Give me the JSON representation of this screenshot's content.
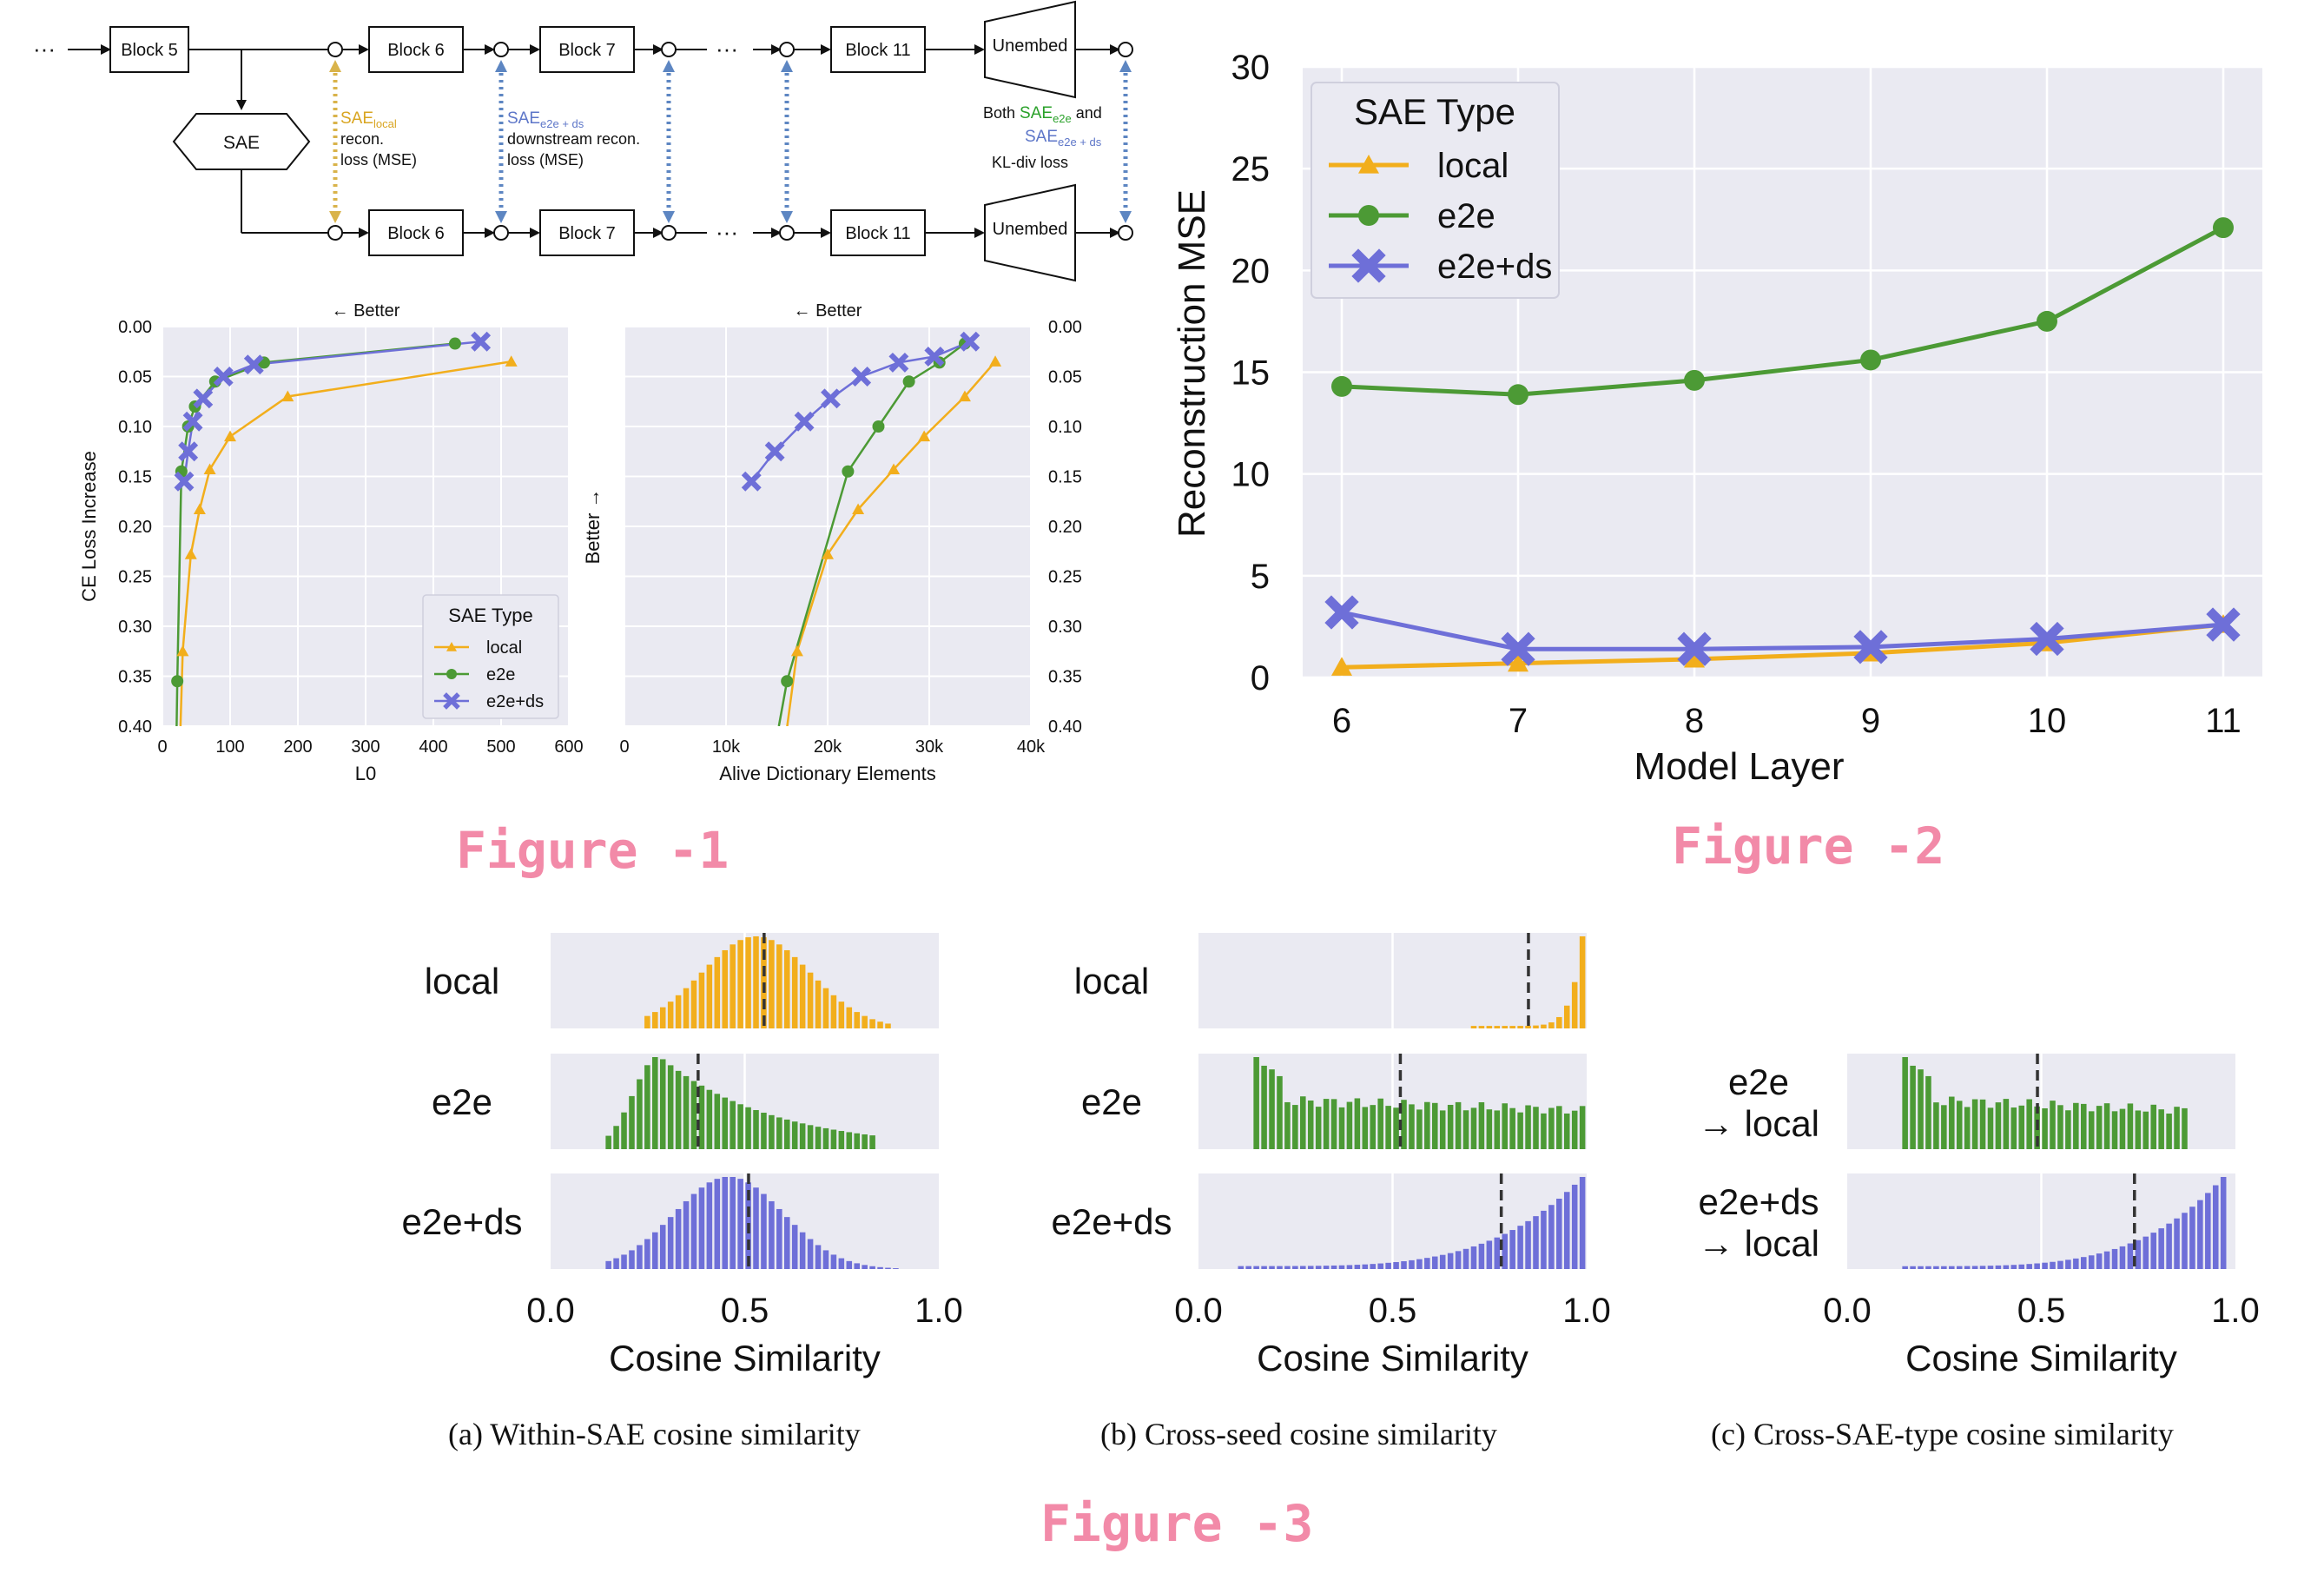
{
  "figure_labels": {
    "fig1": "Figure -1",
    "fig2": "Figure -2",
    "fig3": "Figure -3"
  },
  "colors": {
    "local": "#f2ae1c",
    "e2e": "#4c9a35",
    "e2e_ds": "#6e6fd8",
    "plot_bg": "#eaeaf2",
    "figure_label": "#f28aa8"
  },
  "diagram": {
    "ellipsis": "···",
    "top_row": [
      "Block 5",
      "Block 6",
      "Block 7",
      "Block 11",
      "Unembed"
    ],
    "bottom_row": [
      "Block 6",
      "Block 7",
      "Block 11",
      "Unembed"
    ],
    "sae_label": "SAE",
    "note_local": {
      "prefix": "SAE",
      "sub": "local",
      "lines": [
        "recon.",
        "loss (MSE)"
      ]
    },
    "note_e2eds": {
      "prefix": "SAE",
      "sub": "e2e + ds",
      "lines": [
        "downstream recon.",
        "loss (MSE)"
      ]
    },
    "note_kl": {
      "both": "Both",
      "sae1": "SAE",
      "sub1": "e2e",
      "and": "and",
      "sae2": "SAE",
      "sub2": "e2e + ds",
      "line3": "KL-div loss"
    }
  },
  "chart_data": [
    {
      "id": "fig1_left",
      "type": "line",
      "title": "← Better",
      "xlabel": "L0",
      "ylabel": "CE Loss Increase",
      "xlim": [
        0,
        600
      ],
      "ylim": [
        0.0,
        0.4
      ],
      "y_inverted": true,
      "xticks": [
        "0",
        "100",
        "200",
        "300",
        "400",
        "500",
        "600"
      ],
      "yticks": [
        "0.00",
        "0.05",
        "0.10",
        "0.15",
        "0.20",
        "0.25",
        "0.30",
        "0.35",
        "0.40"
      ],
      "legend": {
        "title": "SAE Type",
        "position": "lower-right"
      },
      "series": [
        {
          "name": "local",
          "points": [
            [
              30,
              0.325
            ],
            [
              42,
              0.228
            ],
            [
              55,
              0.183
            ],
            [
              70,
              0.143
            ],
            [
              100,
              0.11
            ],
            [
              185,
              0.07
            ],
            [
              515,
              0.035
            ]
          ]
        },
        {
          "name": "e2e",
          "points": [
            [
              22,
              0.355
            ],
            [
              28,
              0.145
            ],
            [
              38,
              0.1
            ],
            [
              48,
              0.08
            ],
            [
              78,
              0.055
            ],
            [
              150,
              0.036
            ],
            [
              432,
              0.017
            ]
          ]
        },
        {
          "name": "e2e+ds",
          "points": [
            [
              32,
              0.155
            ],
            [
              38,
              0.125
            ],
            [
              45,
              0.095
            ],
            [
              60,
              0.072
            ],
            [
              90,
              0.05
            ],
            [
              135,
              0.038
            ],
            [
              470,
              0.015
            ]
          ]
        }
      ]
    },
    {
      "id": "fig1_right",
      "type": "line",
      "title": "← Better",
      "xlabel": "Alive Dictionary Elements",
      "ylabel": "Better →",
      "xlim": [
        0,
        40000
      ],
      "ylim": [
        0.0,
        0.4
      ],
      "y_inverted": true,
      "xticks": [
        "0",
        "10k",
        "20k",
        "30k",
        "40k"
      ],
      "yticks": [
        "0.00",
        "0.05",
        "0.10",
        "0.15",
        "0.20",
        "0.25",
        "0.30",
        "0.35",
        "0.40"
      ],
      "series": [
        {
          "name": "local",
          "points": [
            [
              17000,
              0.325
            ],
            [
              20000,
              0.228
            ],
            [
              23000,
              0.183
            ],
            [
              26500,
              0.143
            ],
            [
              29500,
              0.11
            ],
            [
              33500,
              0.07
            ],
            [
              36500,
              0.035
            ]
          ]
        },
        {
          "name": "e2e",
          "points": [
            [
              16000,
              0.355
            ],
            [
              22000,
              0.145
            ],
            [
              25000,
              0.1
            ],
            [
              28000,
              0.055
            ],
            [
              31000,
              0.036
            ],
            [
              33500,
              0.017
            ]
          ]
        },
        {
          "name": "e2e+ds",
          "points": [
            [
              12500,
              0.155
            ],
            [
              14800,
              0.125
            ],
            [
              17700,
              0.095
            ],
            [
              20300,
              0.072
            ],
            [
              23300,
              0.05
            ],
            [
              27000,
              0.036
            ],
            [
              30500,
              0.03
            ],
            [
              34000,
              0.015
            ]
          ]
        }
      ]
    },
    {
      "id": "fig2",
      "type": "line",
      "xlabel": "Model Layer",
      "ylabel": "Reconstruction MSE",
      "ylim": [
        0,
        30
      ],
      "categories": [
        "6",
        "7",
        "8",
        "9",
        "10",
        "11"
      ],
      "yticks": [
        "0",
        "5",
        "10",
        "15",
        "20",
        "25",
        "30"
      ],
      "legend": {
        "title": "SAE Type",
        "position": "top-left"
      },
      "series": [
        {
          "name": "local",
          "values": [
            0.5,
            0.7,
            0.9,
            1.2,
            1.7,
            2.6
          ]
        },
        {
          "name": "e2e",
          "values": [
            14.3,
            13.9,
            14.6,
            15.6,
            17.5,
            22.1
          ]
        },
        {
          "name": "e2e+ds",
          "values": [
            3.2,
            1.4,
            1.4,
            1.5,
            1.9,
            2.6
          ]
        }
      ]
    },
    {
      "id": "fig3",
      "type": "histogram",
      "xlabel": "Cosine Similarity",
      "xlim": [
        0.0,
        1.0
      ],
      "xticks": [
        "0.0",
        "0.5",
        "1.0"
      ],
      "panels": [
        {
          "caption": "(a) Within-SAE cosine similarity",
          "rows": [
            {
              "label": [
                "local"
              ],
              "series": "local",
              "range": [
                0.24,
                0.88
              ],
              "shape": "normal",
              "center": 0.53,
              "width": 0.14,
              "mean": 0.55
            },
            {
              "label": [
                "e2e"
              ],
              "series": "e2e",
              "range": [
                0.15,
                0.84
              ],
              "shape": "skew",
              "center": 0.28,
              "width": 0.12,
              "mean": 0.38
            },
            {
              "label": [
                "e2e+ds"
              ],
              "series": "e2e_ds",
              "range": [
                0.14,
                0.9
              ],
              "shape": "normal",
              "center": 0.46,
              "width": 0.14,
              "mean": 0.51
            }
          ]
        },
        {
          "caption": "(b) Cross-seed cosine similarity",
          "rows": [
            {
              "label": [
                "local"
              ],
              "series": "local",
              "range": [
                0.7,
                1.0
              ],
              "shape": "spike",
              "center": 0.99,
              "width": 0.03,
              "mean": 0.85
            },
            {
              "label": [
                "e2e"
              ],
              "series": "e2e",
              "range": [
                0.14,
                0.99
              ],
              "shape": "flat",
              "center": 0.17,
              "width": 0.05,
              "mean": 0.52
            },
            {
              "label": [
                "e2e+ds"
              ],
              "series": "e2e_ds",
              "range": [
                0.1,
                1.0
              ],
              "shape": "rising",
              "center": 0.99,
              "width": 0.05,
              "mean": 0.78
            }
          ]
        },
        {
          "caption": "(c) Cross-SAE-type cosine similarity",
          "rows": [
            {
              "label": [
                "e2e",
                "→ local"
              ],
              "series": "e2e",
              "range": [
                0.14,
                0.88
              ],
              "shape": "flat",
              "center": 0.17,
              "width": 0.05,
              "mean": 0.49
            },
            {
              "label": [
                "e2e+ds",
                "→ local"
              ],
              "series": "e2e_ds",
              "range": [
                0.14,
                0.97
              ],
              "shape": "rising",
              "center": 0.92,
              "width": 0.09,
              "mean": 0.74
            }
          ]
        }
      ]
    }
  ]
}
